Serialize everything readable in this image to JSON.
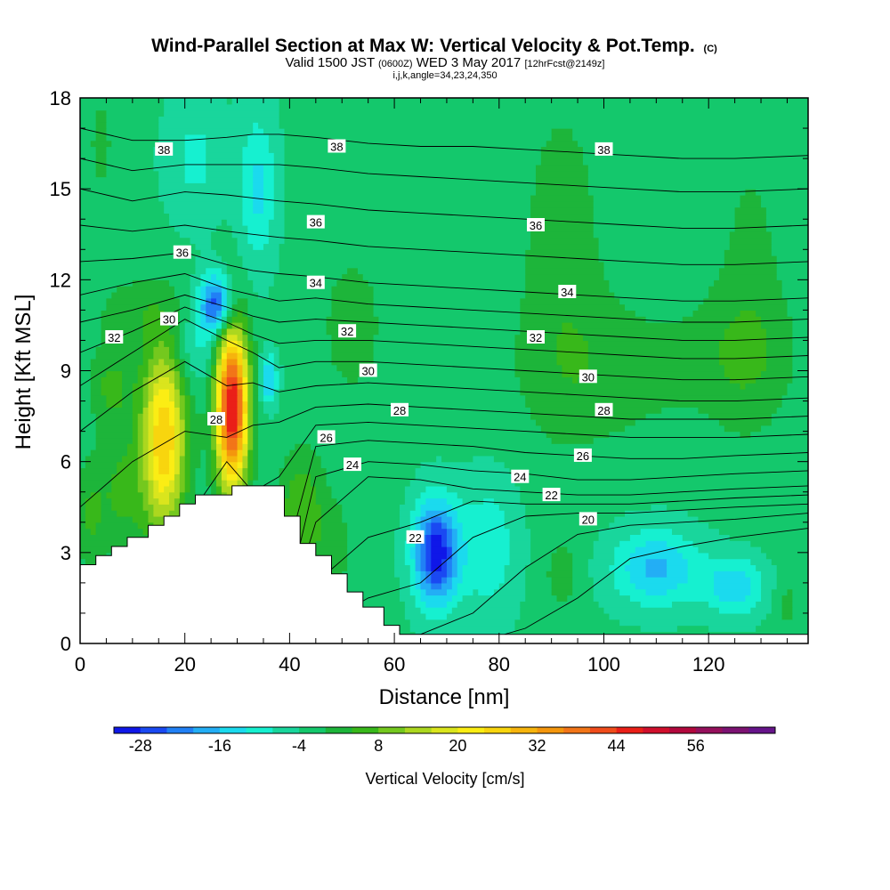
{
  "chart_data": {
    "type": "heatmap",
    "title": {
      "main": "Wind-Parallel Section at Max W: Vertical Velocity & Pot.Temp.",
      "main_tag": "(C)",
      "valid_prefix": "Valid 1500 JST",
      "valid_z": "(0600Z)",
      "valid_date": "WED 3 May 2017",
      "valid_fcst": "[12hrFcst@2149z]",
      "ijk": "i,j,k,angle=34,23,24,350"
    },
    "xlabel": "Distance [nm]",
    "ylabel": "Height [Kft MSL]",
    "xlim": [
      0,
      139
    ],
    "ylim": [
      0,
      18
    ],
    "x_ticks": [
      0,
      20,
      40,
      60,
      80,
      100,
      120
    ],
    "x_tick_labels": [
      "0",
      "20",
      "40",
      "60",
      "80",
      "100",
      "120"
    ],
    "y_ticks": [
      0,
      3,
      6,
      9,
      12,
      15,
      18
    ],
    "y_tick_labels": [
      "0",
      "3",
      "6",
      "9",
      "12",
      "15",
      "18"
    ],
    "colorbar": {
      "title": "Vertical Velocity [cm/s]",
      "min": -32,
      "step": 4,
      "colors": [
        "#0f17e8",
        "#1a49f2",
        "#2180f5",
        "#23aef5",
        "#1bdaee",
        "#16f0d0",
        "#19d69c",
        "#14c86c",
        "#1db53a",
        "#38b81a",
        "#74c81e",
        "#acd71f",
        "#dae51d",
        "#fbed14",
        "#f8d50e",
        "#f6b40d",
        "#f4960d",
        "#f27518",
        "#f04c1b",
        "#ea1f18",
        "#d00f2c",
        "#b2083d",
        "#95105c",
        "#7c1272",
        "#66148a"
      ],
      "tick_values": [
        -28,
        -16,
        -4,
        8,
        20,
        32,
        44,
        56
      ],
      "tick_labels": [
        "-28",
        "-16",
        "-4",
        "8",
        "20",
        "32",
        "44",
        "56"
      ]
    },
    "terrain": [
      [
        0,
        2.6
      ],
      [
        3,
        2.6
      ],
      [
        3,
        2.9
      ],
      [
        6,
        2.9
      ],
      [
        6,
        3.2
      ],
      [
        9,
        3.2
      ],
      [
        9,
        3.5
      ],
      [
        13,
        3.5
      ],
      [
        13,
        3.9
      ],
      [
        16,
        3.9
      ],
      [
        16,
        4.2
      ],
      [
        19,
        4.2
      ],
      [
        19,
        4.6
      ],
      [
        22,
        4.6
      ],
      [
        22,
        4.9
      ],
      [
        29,
        4.9
      ],
      [
        29,
        5.2
      ],
      [
        39,
        5.2
      ],
      [
        39,
        4.2
      ],
      [
        42,
        4.2
      ],
      [
        42,
        3.3
      ],
      [
        45,
        3.3
      ],
      [
        45,
        2.9
      ],
      [
        48,
        2.9
      ],
      [
        48,
        2.3
      ],
      [
        51,
        2.3
      ],
      [
        51,
        1.7
      ],
      [
        54,
        1.7
      ],
      [
        54,
        1.2
      ],
      [
        58,
        1.2
      ],
      [
        58,
        0.6
      ],
      [
        61,
        0.6
      ],
      [
        61,
        0.3
      ],
      [
        139,
        0.3
      ]
    ],
    "theta_levels": [
      20,
      21,
      22,
      23,
      24,
      25,
      26,
      27,
      28,
      29,
      30,
      31,
      32,
      33,
      34,
      35,
      36,
      37,
      38
    ],
    "theta_profiles": [
      {
        "x": 0,
        "h": [
          0.0,
          0.0,
          0.0,
          0.0,
          0.0,
          0.0,
          0.3,
          2.0,
          4.5,
          7.0,
          8.5,
          9.6,
          10.6,
          11.5,
          12.6,
          13.8,
          15.0,
          16.0,
          17.0
        ]
      },
      {
        "x": 10,
        "h": [
          0.0,
          0.0,
          0.0,
          0.0,
          0.0,
          0.0,
          0.5,
          3.0,
          6.0,
          8.3,
          9.6,
          10.3,
          11.0,
          11.9,
          12.7,
          13.6,
          14.6,
          15.6,
          16.6
        ]
      },
      {
        "x": 20,
        "h": [
          0.0,
          0.0,
          0.0,
          0.0,
          0.0,
          0.0,
          1.0,
          4.0,
          7.0,
          9.3,
          10.7,
          11.1,
          11.5,
          12.2,
          12.9,
          13.8,
          14.9,
          15.8,
          16.6
        ]
      },
      {
        "x": 28,
        "h": [
          0.0,
          0.0,
          0.0,
          0.0,
          0.0,
          1.0,
          3.5,
          6.0,
          6.8,
          8.5,
          10.0,
          10.6,
          11.1,
          11.7,
          12.5,
          13.6,
          14.8,
          15.8,
          16.7
        ]
      },
      {
        "x": 33,
        "h": [
          0.0,
          0.0,
          0.0,
          0.0,
          0.0,
          0.5,
          2.0,
          5.0,
          7.2,
          8.6,
          9.6,
          10.2,
          10.8,
          11.5,
          12.3,
          13.5,
          14.7,
          15.8,
          16.8
        ]
      },
      {
        "x": 38,
        "h": [
          0.0,
          0.0,
          0.0,
          0.0,
          0.0,
          0.3,
          2.0,
          5.5,
          7.3,
          8.3,
          9.1,
          9.9,
          10.6,
          11.3,
          12.2,
          13.4,
          14.6,
          15.8,
          16.8
        ]
      },
      {
        "x": 45,
        "h": [
          0.0,
          0.0,
          0.5,
          2.0,
          4.0,
          5.5,
          6.5,
          7.2,
          7.8,
          8.5,
          9.3,
          10.0,
          10.7,
          11.4,
          12.1,
          13.3,
          14.5,
          15.7,
          16.7
        ]
      },
      {
        "x": 55,
        "h": [
          0.0,
          0.3,
          1.5,
          3.5,
          5.5,
          6.0,
          6.7,
          7.3,
          7.9,
          8.6,
          9.3,
          10.0,
          10.6,
          11.2,
          11.9,
          13.1,
          14.3,
          15.5,
          16.5
        ]
      },
      {
        "x": 65,
        "h": [
          0.0,
          0.3,
          2.0,
          4.0,
          5.4,
          5.9,
          6.6,
          7.2,
          7.8,
          8.5,
          9.2,
          9.9,
          10.5,
          11.1,
          11.8,
          13.0,
          14.2,
          15.4,
          16.4
        ]
      },
      {
        "x": 75,
        "h": [
          0.0,
          1.0,
          3.5,
          4.7,
          5.1,
          5.7,
          6.5,
          7.1,
          7.7,
          8.4,
          9.1,
          9.8,
          10.4,
          11.0,
          11.7,
          12.9,
          14.1,
          15.3,
          16.4
        ]
      },
      {
        "x": 85,
        "h": [
          0.5,
          2.5,
          4.2,
          4.6,
          5.0,
          5.6,
          6.3,
          7.0,
          7.6,
          8.3,
          9.0,
          9.7,
          10.3,
          10.9,
          11.6,
          12.8,
          14.0,
          15.2,
          16.3
        ]
      },
      {
        "x": 95,
        "h": [
          1.5,
          3.6,
          4.3,
          4.6,
          4.9,
          5.4,
          6.2,
          6.9,
          7.5,
          8.2,
          8.9,
          9.6,
          10.2,
          10.8,
          11.5,
          12.7,
          13.9,
          15.1,
          16.2
        ]
      },
      {
        "x": 105,
        "h": [
          2.8,
          3.9,
          4.3,
          4.6,
          4.9,
          5.4,
          6.1,
          6.8,
          7.4,
          8.1,
          8.8,
          9.5,
          10.1,
          10.7,
          11.4,
          12.6,
          13.8,
          15.0,
          16.1
        ]
      },
      {
        "x": 115,
        "h": [
          3.2,
          4.0,
          4.4,
          4.7,
          5.0,
          5.5,
          6.1,
          6.8,
          7.4,
          8.0,
          8.7,
          9.4,
          10.0,
          10.6,
          11.3,
          12.5,
          13.7,
          14.9,
          16.0
        ]
      },
      {
        "x": 125,
        "h": [
          3.5,
          4.1,
          4.5,
          4.8,
          5.1,
          5.6,
          6.2,
          6.8,
          7.4,
          8.0,
          8.7,
          9.4,
          10.0,
          10.6,
          11.3,
          12.5,
          13.7,
          14.9,
          16.0
        ]
      },
      {
        "x": 139,
        "h": [
          3.8,
          4.3,
          4.6,
          4.9,
          5.2,
          5.7,
          6.3,
          6.9,
          7.5,
          8.1,
          8.8,
          9.5,
          10.1,
          10.7,
          11.4,
          12.6,
          13.8,
          15.0,
          16.1
        ]
      }
    ],
    "contour_labels": [
      {
        "text": "38",
        "x": 16,
        "y": 16.3
      },
      {
        "text": "38",
        "x": 49,
        "y": 16.4
      },
      {
        "text": "38",
        "x": 100,
        "y": 16.3
      },
      {
        "text": "36",
        "x": 19.5,
        "y": 12.9
      },
      {
        "text": "36",
        "x": 45,
        "y": 13.9
      },
      {
        "text": "36",
        "x": 87,
        "y": 13.8
      },
      {
        "text": "34",
        "x": 45,
        "y": 11.9
      },
      {
        "text": "34",
        "x": 93,
        "y": 11.6
      },
      {
        "text": "32",
        "x": 6.5,
        "y": 10.1
      },
      {
        "text": "32",
        "x": 51,
        "y": 10.3
      },
      {
        "text": "32",
        "x": 87,
        "y": 10.1
      },
      {
        "text": "30",
        "x": 17,
        "y": 10.7
      },
      {
        "text": "30",
        "x": 55,
        "y": 9.0
      },
      {
        "text": "30",
        "x": 97,
        "y": 8.8
      },
      {
        "text": "28",
        "x": 26,
        "y": 7.4
      },
      {
        "text": "28",
        "x": 61,
        "y": 7.7
      },
      {
        "text": "28",
        "x": 100,
        "y": 7.7
      },
      {
        "text": "26",
        "x": 47,
        "y": 6.8
      },
      {
        "text": "26",
        "x": 96,
        "y": 6.2
      },
      {
        "text": "24",
        "x": 52,
        "y": 5.9
      },
      {
        "text": "24",
        "x": 84,
        "y": 5.5
      },
      {
        "text": "22",
        "x": 64,
        "y": 3.5
      },
      {
        "text": "22",
        "x": 90,
        "y": 4.9
      },
      {
        "text": "20",
        "x": 97,
        "y": 4.1
      }
    ],
    "w_features": [
      {
        "x": 16,
        "y": 6.8,
        "sx": 3.0,
        "sy": 2.2,
        "a": 31
      },
      {
        "x": 29,
        "y": 7.8,
        "sx": 2.2,
        "sy": 1.9,
        "a": 52
      },
      {
        "x": 8,
        "y": 5.0,
        "sx": 3.0,
        "sy": 1.3,
        "a": 8
      },
      {
        "x": 2,
        "y": 4.2,
        "sx": 2.0,
        "sy": 1.3,
        "a": 7
      },
      {
        "x": 42,
        "y": 4.5,
        "sx": 3.0,
        "sy": 1.3,
        "a": 10
      },
      {
        "x": 26,
        "y": 11.2,
        "sx": 2.2,
        "sy": 0.7,
        "a": -24
      },
      {
        "x": 34,
        "y": 15.0,
        "sx": 2.5,
        "sy": 1.8,
        "a": -10
      },
      {
        "x": 36,
        "y": 8.7,
        "sx": 1.2,
        "sy": 0.6,
        "a": -14
      },
      {
        "x": 68,
        "y": 3.0,
        "sx": 3.0,
        "sy": 1.2,
        "a": -28
      },
      {
        "x": 78,
        "y": 3.2,
        "sx": 4.0,
        "sy": 1.6,
        "a": -8
      },
      {
        "x": 110,
        "y": 2.5,
        "sx": 6.0,
        "sy": 0.9,
        "a": -14
      },
      {
        "x": 125,
        "y": 1.9,
        "sx": 4.0,
        "sy": 0.7,
        "a": -12
      },
      {
        "x": 92,
        "y": 2.3,
        "sx": 2.5,
        "sy": 0.9,
        "a": 5
      },
      {
        "x": 135,
        "y": 1.3,
        "sx": 1.5,
        "sy": 0.5,
        "a": 5
      },
      {
        "x": 92,
        "y": 13.0,
        "sx": 6.0,
        "sy": 4.0,
        "a": 5
      },
      {
        "x": 128,
        "y": 12.0,
        "sx": 5.0,
        "sy": 4.0,
        "a": 4
      },
      {
        "x": 4,
        "y": 16.5,
        "sx": 2.0,
        "sy": 1.5,
        "a": 4
      },
      {
        "x": 100,
        "y": 9.0,
        "sx": 12.0,
        "sy": 1.8,
        "a": 5
      },
      {
        "x": 126,
        "y": 9.5,
        "sx": 8.0,
        "sy": 1.5,
        "a": 5
      },
      {
        "x": 22,
        "y": 16.0,
        "sx": 4.0,
        "sy": 1.5,
        "a": -6
      },
      {
        "x": 22,
        "y": 9.6,
        "sx": 3.5,
        "sy": 0.9,
        "a": -6
      },
      {
        "x": 10,
        "y": 11.0,
        "sx": 5.0,
        "sy": 0.8,
        "a": 5
      },
      {
        "x": 6,
        "y": 8.5,
        "sx": 3.0,
        "sy": 1.0,
        "a": 8
      },
      {
        "x": 52,
        "y": 10.5,
        "sx": 6.0,
        "sy": 2.5,
        "a": 4
      },
      {
        "x": 48,
        "y": 3.2,
        "sx": 3.0,
        "sy": 1.2,
        "a": 5
      }
    ],
    "w_background": -3
  }
}
